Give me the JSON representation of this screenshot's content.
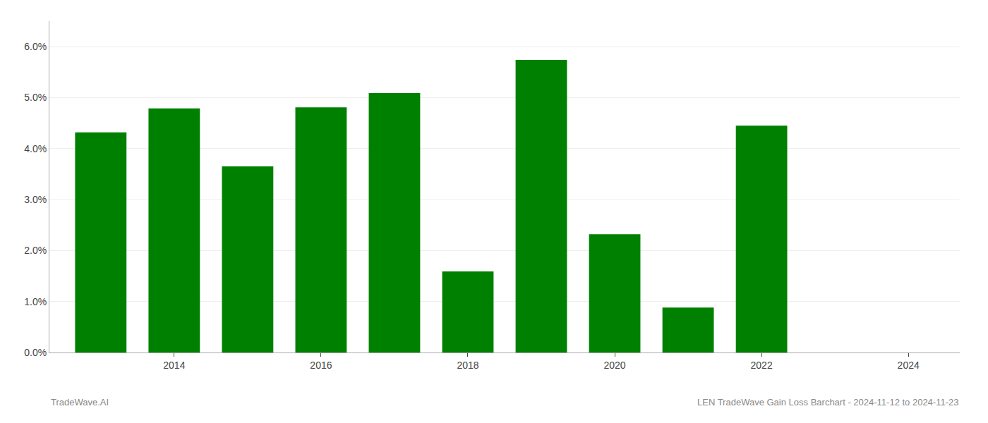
{
  "chart_data": {
    "type": "bar",
    "title": "LEN TradeWave Gain Loss Barchart - 2024-11-12 to 2024-11-23",
    "x": [
      2013,
      2014,
      2015,
      2016,
      2017,
      2018,
      2019,
      2020,
      2021,
      2022
    ],
    "values": [
      0.0432,
      0.0479,
      0.0365,
      0.0481,
      0.0509,
      0.0159,
      0.0574,
      0.0232,
      0.0088,
      0.0445
    ],
    "color": "#008000",
    "xlim": [
      2012.3,
      2024.7
    ],
    "xticks": [
      2014,
      2016,
      2018,
      2020,
      2022,
      2024
    ],
    "ylim": [
      0,
      0.065
    ],
    "yticks": [
      {
        "value": 0.0,
        "label": "0.0%"
      },
      {
        "value": 0.01,
        "label": "1.0%"
      },
      {
        "value": 0.02,
        "label": "2.0%"
      },
      {
        "value": 0.03,
        "label": "3.0%"
      },
      {
        "value": 0.04,
        "label": "4.0%"
      },
      {
        "value": 0.05,
        "label": "5.0%"
      },
      {
        "value": 0.06,
        "label": "6.0%"
      }
    ],
    "grid": true,
    "annotations": [
      {
        "text": "TradeWave.AI"
      }
    ]
  }
}
